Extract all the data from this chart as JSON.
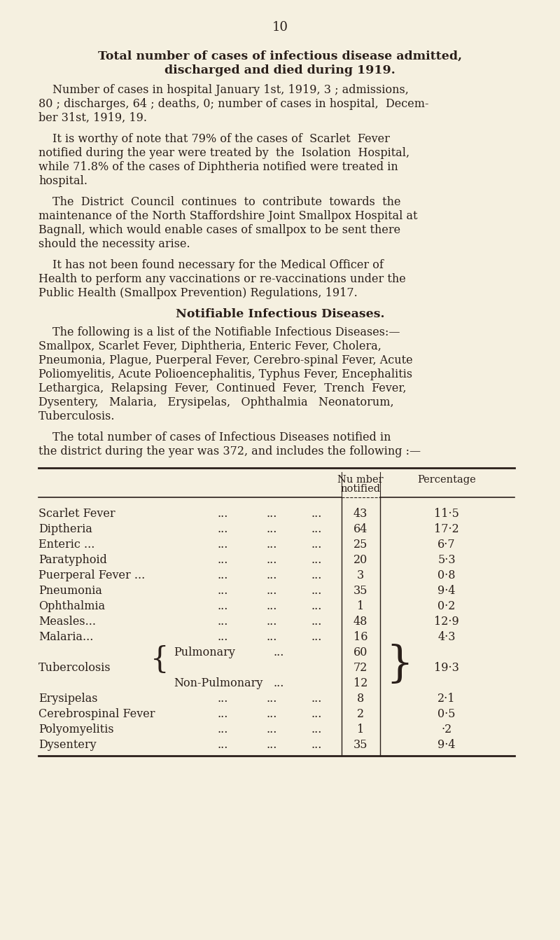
{
  "bg_color": "#f5f0e0",
  "text_color": "#2a1f1a",
  "page_number": "10",
  "title_line1": "Total number of cases of infectious disease admitted,",
  "title_line2": "discharged and died during 1919.",
  "para1_lines": [
    "Number of cases in hospital January 1st, 1919, 3 ; admissions,",
    "80 ; discharges, 64 ; deaths, 0; number of cases in hospital,  Decem-",
    "ber 31st, 1919, 19."
  ],
  "para2_lines": [
    "It is worthy of note that 79% of the cases of  Scarlet  Fever",
    "notified during the year were treated by  the  Isolation  Hospital,",
    "while 71.8% of the cases of Diphtheria notified were treated in",
    "hospital."
  ],
  "para3_lines": [
    "The  District  Council  continues  to  contribute  towards  the",
    "maintenance of the North Staffordshire Joint Smallpox Hospital at",
    "Bagnall, which would enable cases of smallpox to be sent there",
    "should the necessity arise."
  ],
  "para4_lines": [
    "It has not been found necessary for the Medical Officer of",
    "Health to perform any vaccinations or re-vaccinations under the",
    "Public Health (Smallpox Prevention) Regulations, 1917."
  ],
  "subtitle": "Notifiable Infectious Diseases.",
  "para5_lines": [
    "The following is a list of the Notifiable Infectious Diseases:—",
    "Smallpox, Scarlet Fever, Diphtheria, Enteric Fever, Cholera,",
    "Pneumonia, Plague, Puerperal Fever, Cerebro-spinal Fever, Acute",
    "Poliomyelitis, Acute Polioencephalitis, Typhus Fever, Encephalitis",
    "Lethargica,  Relapsing  Fever,  Continued  Fever,  Trench  Fever,",
    "Dysentery,   Malaria,   Erysipelas,   Ophthalmia   Neonatorum,",
    "Tuberculosis."
  ],
  "para6_lines": [
    "The total number of cases of Infectious Diseases notified in",
    "the district during the year was 372, and includes the following :—"
  ],
  "col_header1a": "Nu mber",
  "col_header1b": "notified",
  "col_header2": "Percentage",
  "table_rows": [
    {
      "type": "normal",
      "disease": "Scarlet Fever",
      "number": "43",
      "percentage": "11·5"
    },
    {
      "type": "normal",
      "disease": "Diptheria",
      "number": "64",
      "percentage": "17·2"
    },
    {
      "type": "normal",
      "disease": "Enteric ...",
      "number": "25",
      "percentage": "6·7"
    },
    {
      "type": "normal",
      "disease": "Paratyphoid",
      "number": "20",
      "percentage": "5·3"
    },
    {
      "type": "normal",
      "disease": "Puerperal Fever ...",
      "number": "3",
      "percentage": "0·8"
    },
    {
      "type": "normal",
      "disease": "Pneumonia",
      "number": "35",
      "percentage": "9·4"
    },
    {
      "type": "normal",
      "disease": "Ophthalmia",
      "number": "1",
      "percentage": "0·2"
    },
    {
      "type": "normal",
      "disease": "Measles...",
      "number": "48",
      "percentage": "12·9"
    },
    {
      "type": "normal",
      "disease": "Malaria...",
      "number": "16",
      "percentage": "4·3"
    },
    {
      "type": "pulmonary",
      "disease": "Pulmonary",
      "number": "60",
      "percentage": ""
    },
    {
      "type": "tubercolosis",
      "disease": "Tubercolosis",
      "number": "72",
      "percentage": "19·3"
    },
    {
      "type": "nonpulmonary",
      "disease": "Non-Pulmonary",
      "number": "12",
      "percentage": ""
    },
    {
      "type": "normal",
      "disease": "Erysipelas",
      "number": "8",
      "percentage": "2·1"
    },
    {
      "type": "normal",
      "disease": "Cerebrospinal Fever",
      "number": "2",
      "percentage": "0·5"
    },
    {
      "type": "normal",
      "disease": "Polyomyelitis",
      "number": "1",
      "percentage": "·2"
    },
    {
      "type": "normal",
      "disease": "Dysentery",
      "number": "35",
      "percentage": "9·4"
    }
  ]
}
